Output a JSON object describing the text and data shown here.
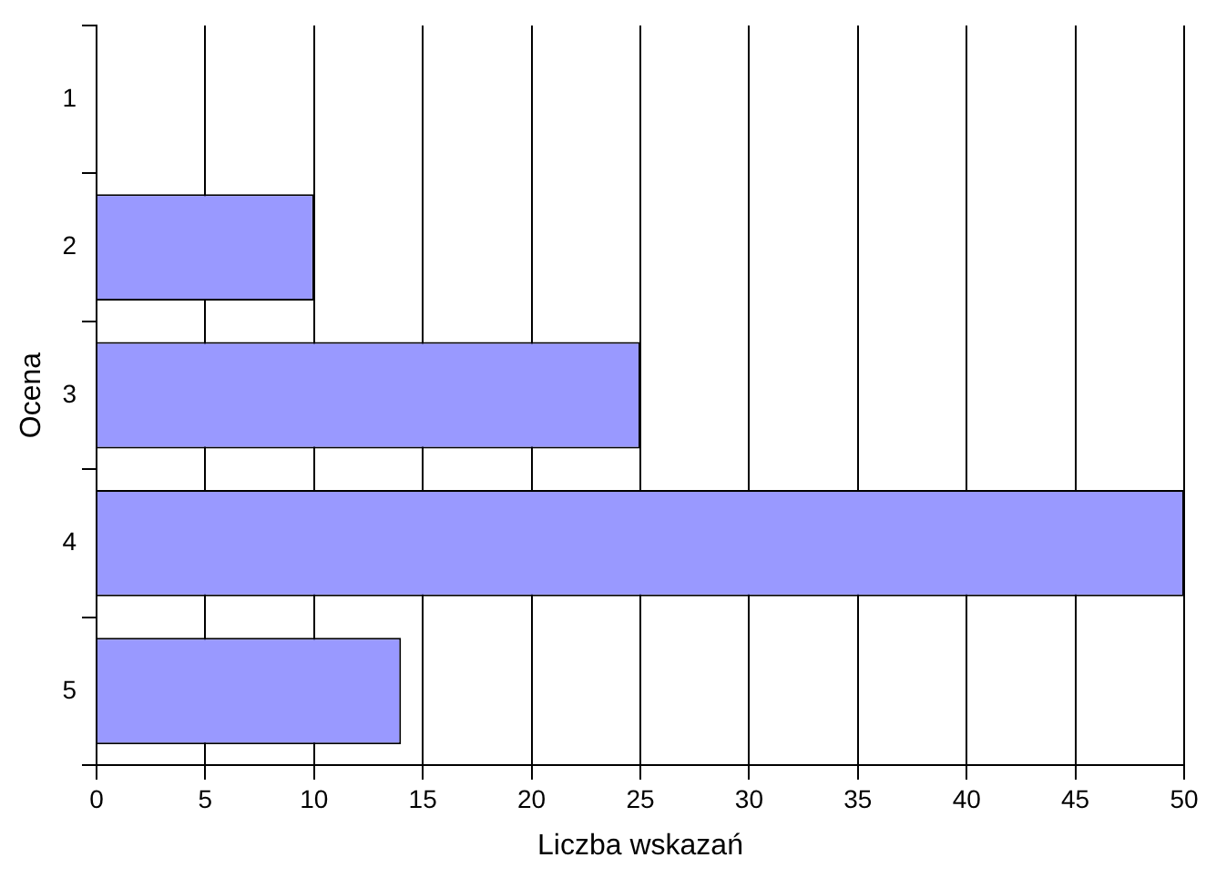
{
  "chart_data": {
    "type": "bar",
    "orientation": "horizontal",
    "xlabel": "Liczba wskazań",
    "ylabel": "Ocena",
    "categories": [
      "1",
      "2",
      "3",
      "4",
      "5"
    ],
    "values": [
      0,
      10,
      25,
      50,
      14
    ],
    "color": "#9999ff",
    "xlim": [
      0,
      50
    ],
    "xticks": [
      0,
      5,
      10,
      15,
      20,
      25,
      30,
      35,
      40,
      45,
      50
    ],
    "grid": "x",
    "legend": false
  }
}
